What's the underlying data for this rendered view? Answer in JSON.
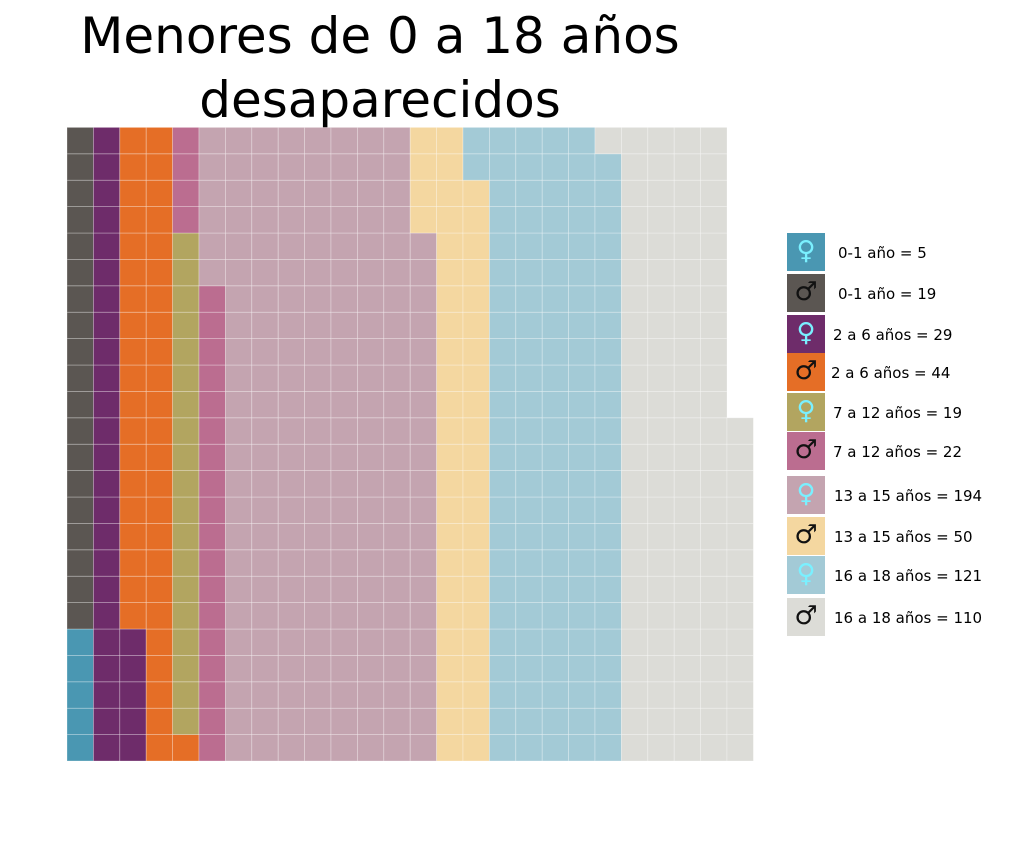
{
  "chart_data": {
    "type": "waffle",
    "title_lines": [
      "Menores de 0 a 18 años",
      "desaparecidos"
    ],
    "grid": {
      "rows": 24,
      "fill_order": "column-major, bottom-to-top, left-to-right"
    },
    "categories": [
      {
        "label": "0-1 año = 5",
        "value": 5,
        "sex": "female",
        "symbol": "♀",
        "color": "#4a97b2",
        "symbol_color": "#7af0ff"
      },
      {
        "label": "0-1 año = 19",
        "value": 19,
        "sex": "male",
        "symbol": "♂",
        "color": "#5b5652",
        "symbol_color": "#111111"
      },
      {
        "label": "2 a 6 años = 29",
        "value": 29,
        "sex": "female",
        "symbol": "♀",
        "color": "#6e2c6a",
        "symbol_color": "#7af0ff"
      },
      {
        "label": "2 a 6 años = 44",
        "value": 44,
        "sex": "male",
        "symbol": "♂",
        "color": "#e56e26",
        "symbol_color": "#111111"
      },
      {
        "label": "7 a 12 años = 19",
        "value": 19,
        "sex": "female",
        "symbol": "♀",
        "color": "#b2a560",
        "symbol_color": "#7af0ff"
      },
      {
        "label": "7 a 12 años = 22",
        "value": 22,
        "sex": "male",
        "symbol": "♂",
        "color": "#bb6d90",
        "symbol_color": "#111111"
      },
      {
        "label": "13 a 15 años = 194",
        "value": 194,
        "sex": "female",
        "symbol": "♀",
        "color": "#c4a4b0",
        "symbol_color": "#7af0ff"
      },
      {
        "label": "13 a 15 años = 50",
        "value": 50,
        "sex": "male",
        "symbol": "♂",
        "color": "#f4d7a0",
        "symbol_color": "#111111"
      },
      {
        "label": "16 a 18 años = 121",
        "value": 121,
        "sex": "female",
        "symbol": "♀",
        "color": "#a3cad6",
        "symbol_color": "#7af0ff"
      },
      {
        "label": "16 a 18 años = 110",
        "value": 110,
        "sex": "male",
        "symbol": "♂",
        "color": "#dcdcd7",
        "symbol_color": "#111111"
      }
    ]
  }
}
